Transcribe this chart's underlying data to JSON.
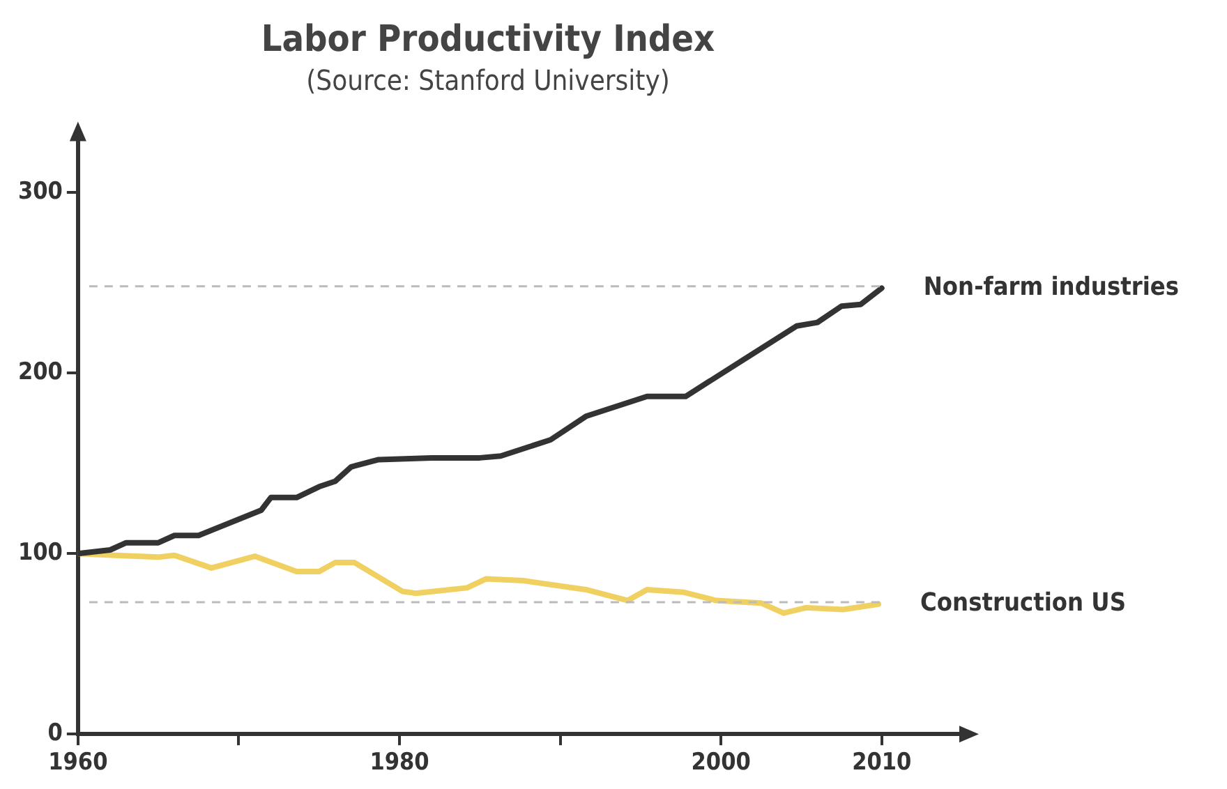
{
  "chart_data": {
    "type": "line",
    "title": "Labor Productivity Index",
    "subtitle": "(Source: Stanford University)",
    "xlim": [
      1960,
      2015
    ],
    "ylim": [
      0,
      330
    ],
    "xticks": [
      1960,
      {
        "value": 1970,
        "label": null
      },
      1980,
      {
        "value": 1990,
        "label": null
      },
      2000,
      2010
    ],
    "yticks": [
      0,
      100,
      200,
      300
    ],
    "grid": false,
    "legend": false,
    "marker": "none",
    "line_style": "solid",
    "ref_lines": [
      {
        "axis": "y",
        "value": 248,
        "color": "#bbbbbb",
        "line_style": "dashed"
      },
      {
        "axis": "y",
        "value": 73,
        "color": "#bbbbbb",
        "line_style": "dashed"
      }
    ],
    "series": [
      {
        "name": "Non-farm industries",
        "color": "#333333",
        "x": [
          1960,
          1962,
          1963,
          1965,
          1966,
          1967.5,
          1971.4,
          1972,
          1973.6,
          1975,
          1976,
          1977,
          1978.7,
          1982,
          1985,
          1986.3,
          1989.4,
          1991.6,
          1995.4,
          1997.8,
          2004.7,
          2006,
          2007.5,
          2008.7,
          2010
        ],
        "values": [
          100,
          102,
          106,
          106,
          110,
          110,
          124,
          131,
          131,
          137,
          140,
          148,
          152,
          153,
          153,
          154,
          163,
          176,
          187,
          187,
          226,
          228,
          237,
          238,
          247
        ]
      },
      {
        "name": "Construction US",
        "color": "#f0d060",
        "x": [
          1960,
          1962.3,
          1965,
          1966,
          1968.3,
          1971,
          1973.6,
          1975,
          1976,
          1977.2,
          1980.2,
          1981,
          1984.2,
          1985.4,
          1987.7,
          1991.6,
          1994.2,
          1995.4,
          1997.7,
          1999.7,
          2002.5,
          2003.9,
          2005.3,
          2007.6,
          2009.8
        ],
        "values": [
          100,
          99,
          98,
          99,
          92,
          98.5,
          90,
          90,
          95,
          95,
          79,
          78,
          81,
          86,
          85,
          80,
          74,
          80,
          78.5,
          74,
          72.6,
          67,
          70,
          69,
          72
        ]
      }
    ]
  }
}
